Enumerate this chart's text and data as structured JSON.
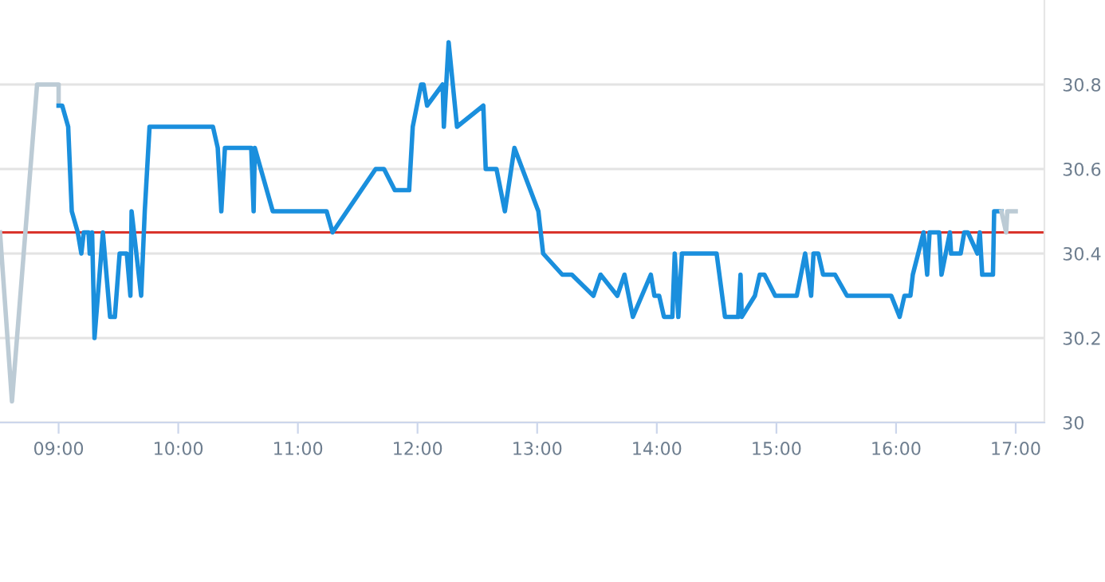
{
  "chart_data": {
    "type": "line",
    "xlim": [
      8.51,
      17.24
    ],
    "ylim": [
      30,
      31
    ],
    "xticks": [
      {
        "value": 9,
        "label": "09:00"
      },
      {
        "value": 10,
        "label": "10:00"
      },
      {
        "value": 11,
        "label": "11:00"
      },
      {
        "value": 12,
        "label": "12:00"
      },
      {
        "value": 13,
        "label": "13:00"
      },
      {
        "value": 14,
        "label": "14:00"
      },
      {
        "value": 15,
        "label": "15:00"
      },
      {
        "value": 16,
        "label": "16:00"
      },
      {
        "value": 17,
        "label": "17:00"
      }
    ],
    "yticks": [
      30,
      30.2,
      30.4,
      30.6,
      30.8
    ],
    "grid": "y",
    "legend": false,
    "marker": "none",
    "line_style": "solid",
    "ref_lines": [
      {
        "axis": "y",
        "value": 30.45,
        "color": "#d9342b"
      }
    ],
    "series": [
      {
        "color": "#bccbd5",
        "x": [
          8.51,
          8.61,
          8.82,
          9.0,
          9.0
        ],
        "values": [
          30.45,
          30.05,
          30.8,
          30.8,
          30.75
        ]
      },
      {
        "color": "#1a8fdd",
        "x": [
          9.0,
          9.03,
          9.08,
          9.11,
          9.16,
          9.19,
          9.21,
          9.25,
          9.26,
          9.28,
          9.3,
          9.37,
          9.43,
          9.47,
          9.51,
          9.57,
          9.6,
          9.61,
          9.69,
          9.72,
          9.76,
          10.29,
          10.33,
          10.36,
          10.39,
          10.61,
          10.63,
          10.64,
          10.79,
          11.24,
          11.29,
          11.65,
          11.72,
          11.81,
          11.93,
          11.96,
          12.03,
          12.05,
          12.08,
          12.21,
          12.22,
          12.26,
          12.33,
          12.55,
          12.57,
          12.66,
          12.73,
          12.81,
          13.01,
          13.05,
          13.21,
          13.29,
          13.47,
          13.53,
          13.67,
          13.73,
          13.8,
          13.95,
          13.98,
          14.02,
          14.06,
          14.13,
          14.15,
          14.18,
          14.21,
          14.5,
          14.57,
          14.68,
          14.7,
          14.71,
          14.82,
          14.86,
          14.9,
          14.99,
          15.17,
          15.24,
          15.29,
          15.31,
          15.35,
          15.39,
          15.49,
          15.59,
          15.96,
          16.03,
          16.07,
          16.12,
          16.14,
          16.23,
          16.26,
          16.28,
          16.36,
          16.38,
          16.45,
          16.46,
          16.54,
          16.57,
          16.6,
          16.68,
          16.7,
          16.72,
          16.81,
          16.82,
          16.88
        ],
        "values": [
          30.75,
          30.75,
          30.7,
          30.5,
          30.45,
          30.4,
          30.45,
          30.45,
          30.4,
          30.45,
          30.2,
          30.45,
          30.25,
          30.25,
          30.4,
          30.4,
          30.3,
          30.5,
          30.3,
          30.5,
          30.7,
          30.7,
          30.65,
          30.5,
          30.65,
          30.65,
          30.5,
          30.65,
          30.5,
          30.5,
          30.45,
          30.6,
          30.6,
          30.55,
          30.55,
          30.7,
          30.8,
          30.8,
          30.75,
          30.8,
          30.7,
          30.9,
          30.7,
          30.75,
          30.6,
          30.6,
          30.5,
          30.65,
          30.5,
          30.4,
          30.35,
          30.35,
          30.3,
          30.35,
          30.3,
          30.35,
          30.25,
          30.35,
          30.3,
          30.3,
          30.25,
          30.25,
          30.4,
          30.25,
          30.4,
          30.4,
          30.25,
          30.25,
          30.35,
          30.25,
          30.3,
          30.35,
          30.35,
          30.3,
          30.3,
          30.4,
          30.3,
          30.4,
          30.4,
          30.35,
          30.35,
          30.3,
          30.3,
          30.25,
          30.3,
          30.3,
          30.35,
          30.45,
          30.35,
          30.45,
          30.45,
          30.35,
          30.45,
          30.4,
          30.4,
          30.45,
          30.45,
          30.4,
          30.45,
          30.35,
          30.35,
          30.5,
          30.5
        ]
      },
      {
        "color": "#bccbd5",
        "x": [
          16.88,
          16.92,
          16.93,
          17.0
        ],
        "values": [
          30.5,
          30.45,
          30.5,
          30.5
        ]
      }
    ]
  }
}
